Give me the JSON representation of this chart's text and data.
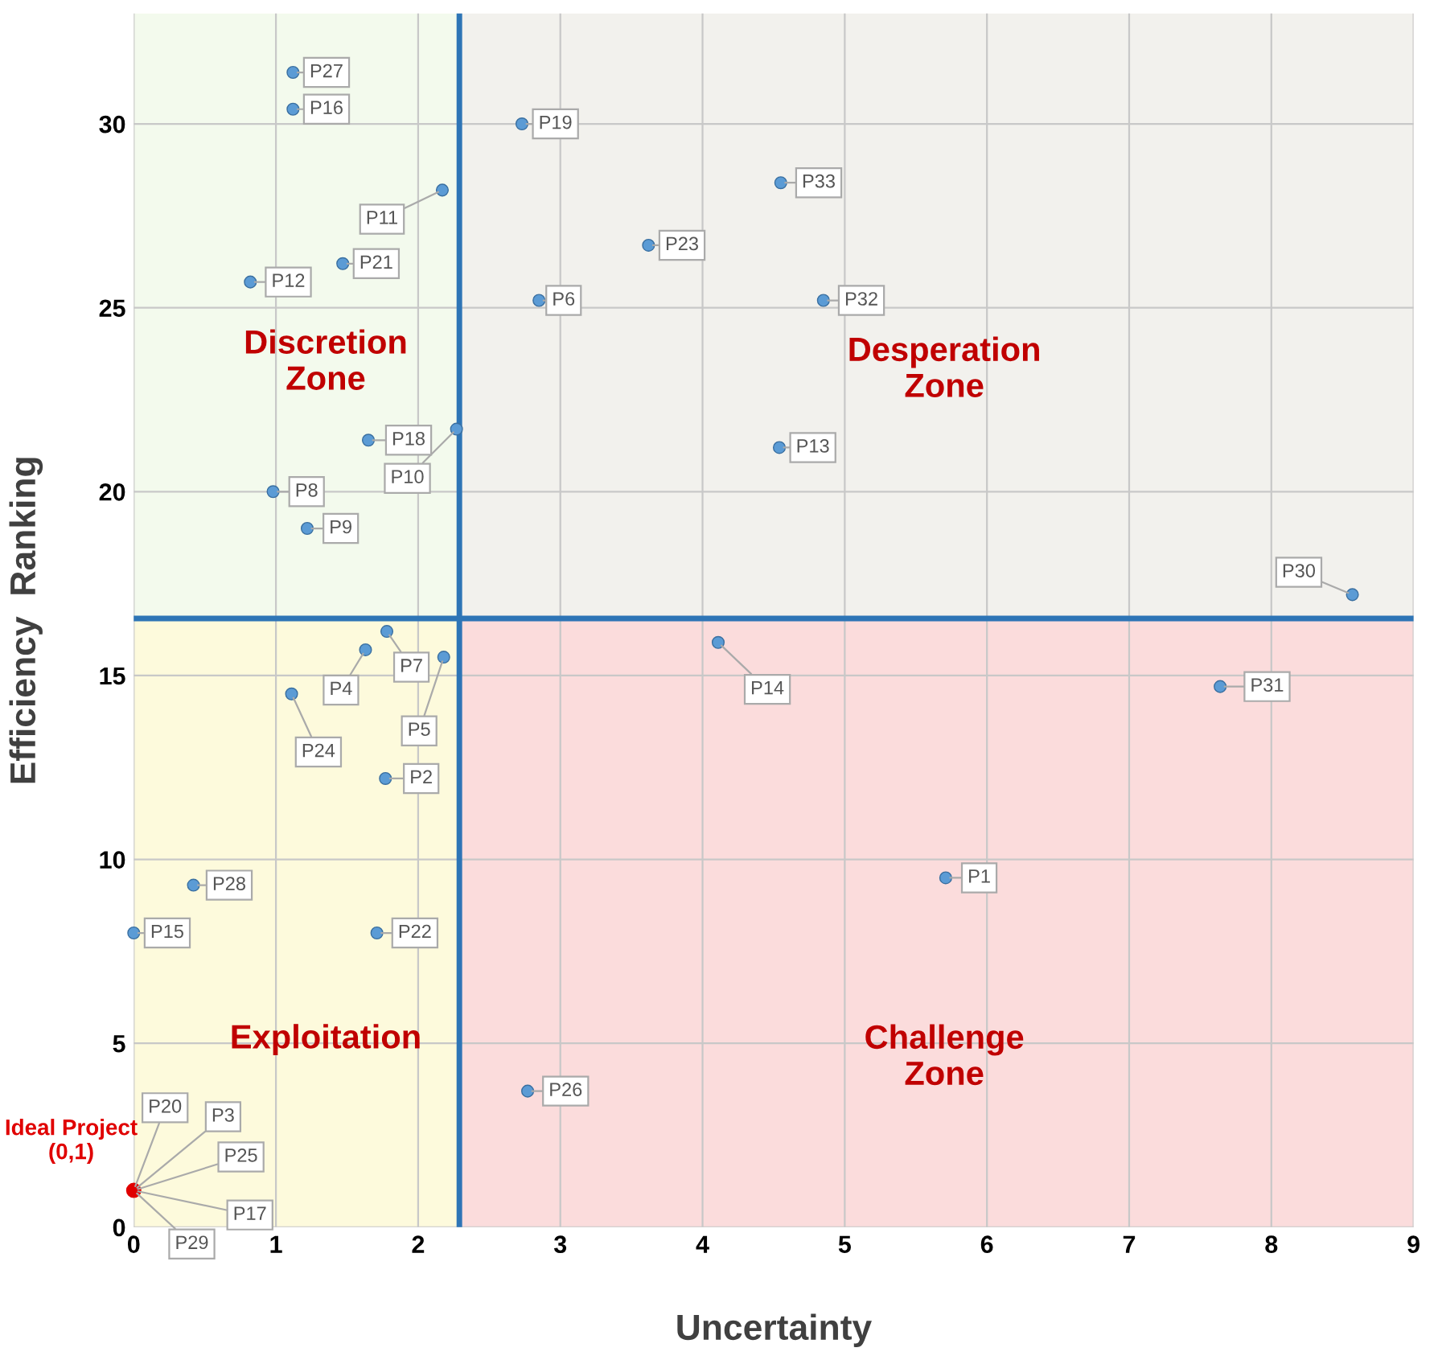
{
  "chart_data": {
    "type": "scatter",
    "xlabel": "Uncertainty",
    "ylabel": "Efficiency  Ranking",
    "xlim": [
      0,
      9
    ],
    "ylim": [
      0,
      33
    ],
    "xticks": [
      0,
      1,
      2,
      3,
      4,
      5,
      6,
      7,
      8,
      9
    ],
    "yticks": [
      0,
      5,
      10,
      15,
      20,
      25,
      30
    ],
    "grid": true,
    "marker": "circle",
    "legend": false,
    "series": [
      {
        "color": "#5b9bd5",
        "x": [
          1.12,
          1.12,
          2.73,
          4.55,
          2.17,
          1.47,
          3.62,
          0.82,
          2.85,
          4.85,
          1.65,
          2.27,
          4.54,
          0.98,
          1.22,
          8.57,
          1.78,
          1.63,
          2.18,
          4.11,
          7.64,
          1.11,
          1.77,
          5.71,
          0.42,
          0,
          1.71,
          2.77
        ],
        "values": [
          31.4,
          30.4,
          30.0,
          28.4,
          28.2,
          26.2,
          26.7,
          25.7,
          25.2,
          25.2,
          21.4,
          21.7,
          21.2,
          20.0,
          19.0,
          17.2,
          16.2,
          15.7,
          15.5,
          15.9,
          14.7,
          14.5,
          12.2,
          9.5,
          9.3,
          8.0,
          8.0,
          3.7
        ]
      },
      {
        "name": "Ideal Project (0,1)",
        "color": "#e00000",
        "x": [
          0
        ],
        "values": [
          1
        ]
      }
    ],
    "ref_lines": [
      {
        "axis": "x",
        "value": 2.29,
        "color": "#2e75b6"
      },
      {
        "axis": "y",
        "value": 16.55,
        "color": "#2e75b6"
      }
    ],
    "bands": [
      {
        "axis": "x",
        "from": 0,
        "to": 2.29,
        "color": "#fbf6c4"
      },
      {
        "axis": "x",
        "from": 2.29,
        "to": 9,
        "color": "#f8c4c4"
      },
      {
        "axis": "y",
        "from": 16.55,
        "to": 33,
        "color": "#eef9f4"
      }
    ],
    "annotations": [
      "Discretion\nZone",
      "Desperation\nZone",
      "Exploitation",
      "Challenge\nZone",
      {
        "text": "P27",
        "x": 1.12,
        "y": 31.4
      },
      {
        "text": "P16",
        "x": 1.12,
        "y": 30.4
      },
      {
        "text": "P19",
        "x": 2.73,
        "y": 30.0
      },
      {
        "text": "P33",
        "x": 4.55,
        "y": 28.4
      },
      {
        "text": "P11",
        "x": 2.17,
        "y": 28.2
      },
      {
        "text": "P21",
        "x": 1.47,
        "y": 26.2
      },
      {
        "text": "P23",
        "x": 3.62,
        "y": 26.7
      },
      {
        "text": "P12",
        "x": 0.82,
        "y": 25.7
      },
      {
        "text": "P6",
        "x": 2.85,
        "y": 25.2
      },
      {
        "text": "P32",
        "x": 4.85,
        "y": 25.2
      },
      {
        "text": "P18",
        "x": 1.65,
        "y": 21.4
      },
      {
        "text": "P10",
        "x": 2.27,
        "y": 21.7
      },
      {
        "text": "P13",
        "x": 4.54,
        "y": 21.2
      },
      {
        "text": "P8",
        "x": 0.98,
        "y": 20.0
      },
      {
        "text": "P9",
        "x": 1.22,
        "y": 19.0
      },
      {
        "text": "P30",
        "x": 8.57,
        "y": 17.2
      },
      {
        "text": "P7",
        "x": 1.78,
        "y": 16.2
      },
      {
        "text": "P4",
        "x": 1.63,
        "y": 15.7
      },
      {
        "text": "P5",
        "x": 2.18,
        "y": 15.5
      },
      {
        "text": "P14",
        "x": 4.11,
        "y": 15.9
      },
      {
        "text": "P31",
        "x": 7.64,
        "y": 14.7
      },
      {
        "text": "P24",
        "x": 1.11,
        "y": 14.5
      },
      {
        "text": "P2",
        "x": 1.77,
        "y": 12.2
      },
      {
        "text": "P1",
        "x": 5.71,
        "y": 9.5
      },
      {
        "text": "P28",
        "x": 0.42,
        "y": 9.3
      },
      {
        "text": "P15",
        "x": 0,
        "y": 8.0
      },
      {
        "text": "P22",
        "x": 1.71,
        "y": 8.0
      },
      {
        "text": "P26",
        "x": 2.77,
        "y": 3.7
      },
      {
        "text": "P20",
        "x": 0,
        "y": 1
      },
      {
        "text": "P3",
        "x": 0,
        "y": 1
      },
      {
        "text": "P25",
        "x": 0,
        "y": 1
      },
      {
        "text": "P17",
        "x": 0,
        "y": 1
      },
      {
        "text": "P29",
        "x": 0,
        "y": 1
      }
    ]
  }
}
